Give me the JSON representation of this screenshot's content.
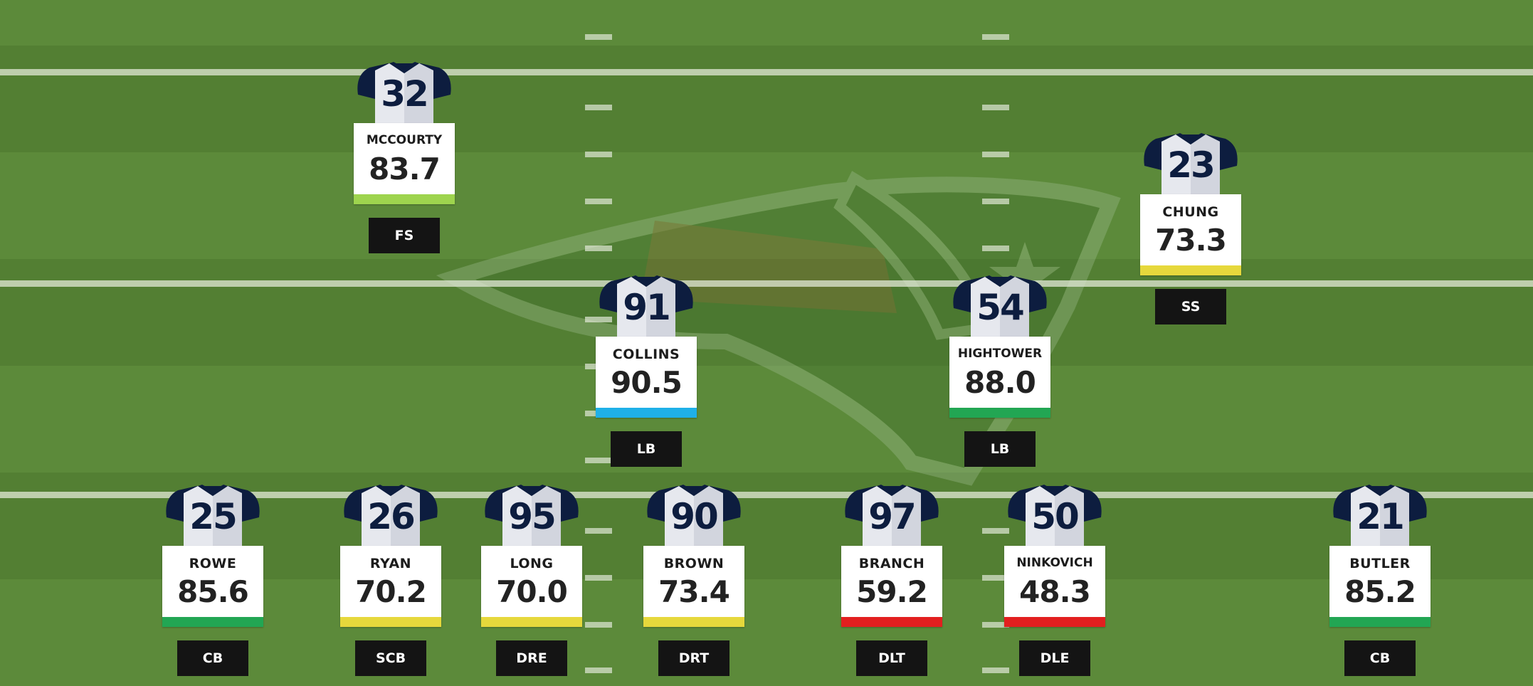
{
  "colors": {
    "field_light": "#5c8a3a",
    "field_dark": "#537f33",
    "jersey_navy": "#0d1d3f",
    "grade_green_light": "#9ed44e",
    "grade_green": "#22a653",
    "grade_blue": "#1fb0e8",
    "grade_yellow": "#e6d83c",
    "grade_red": "#e21f1f"
  },
  "players": [
    {
      "number": "32",
      "name": "MCCOURTY",
      "grade": "83.7",
      "position": "FS",
      "grade_color": "#9ed44e"
    },
    {
      "number": "23",
      "name": "CHUNG",
      "grade": "73.3",
      "position": "SS",
      "grade_color": "#e6d83c"
    },
    {
      "number": "91",
      "name": "COLLINS",
      "grade": "90.5",
      "position": "LB",
      "grade_color": "#1fb0e8"
    },
    {
      "number": "54",
      "name": "HIGHTOWER",
      "grade": "88.0",
      "position": "LB",
      "grade_color": "#22a653"
    },
    {
      "number": "25",
      "name": "ROWE",
      "grade": "85.6",
      "position": "CB",
      "grade_color": "#22a653"
    },
    {
      "number": "26",
      "name": "RYAN",
      "grade": "70.2",
      "position": "SCB",
      "grade_color": "#e6d83c"
    },
    {
      "number": "95",
      "name": "LONG",
      "grade": "70.0",
      "position": "DRE",
      "grade_color": "#e6d83c"
    },
    {
      "number": "90",
      "name": "BROWN",
      "grade": "73.4",
      "position": "DRT",
      "grade_color": "#e6d83c"
    },
    {
      "number": "97",
      "name": "BRANCH",
      "grade": "59.2",
      "position": "DLT",
      "grade_color": "#e21f1f"
    },
    {
      "number": "50",
      "name": "NINKOVICH",
      "grade": "48.3",
      "position": "DLE",
      "grade_color": "#e21f1f"
    },
    {
      "number": "21",
      "name": "BUTLER",
      "grade": "85.2",
      "position": "CB",
      "grade_color": "#22a653"
    }
  ]
}
